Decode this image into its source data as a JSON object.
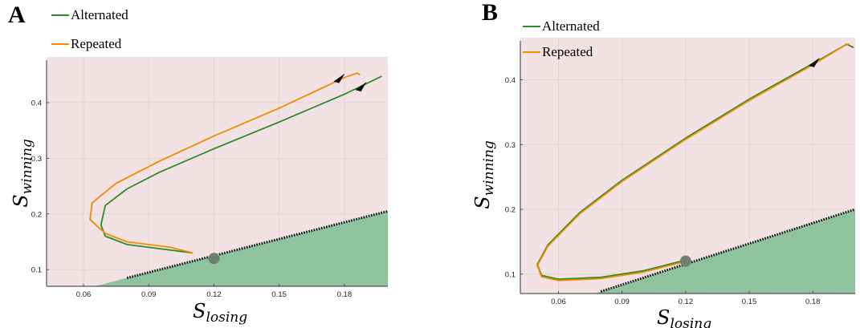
{
  "colors": {
    "background_region": "#f2e2e3",
    "stable_region": "#8fc39e",
    "alternated": "#2e8b2e",
    "repeated": "#f08c00",
    "fixed_point": "#6f7f75",
    "grid": "#d9cfd0"
  },
  "chart_data": [
    {
      "panel": "A",
      "type": "line",
      "xlabel_main": "S",
      "xlabel_sub": "losing",
      "ylabel_main": "S",
      "ylabel_sub": "winning",
      "xlim": [
        0.043,
        0.2
      ],
      "ylim": [
        0.07,
        0.482
      ],
      "xticks": [
        "0.06",
        "0.09",
        "0.12",
        "0.15",
        "0.18"
      ],
      "yticks": [
        "0.1",
        "0.2",
        "0.3",
        "0.4"
      ],
      "grid": true,
      "legend": [
        "Alternated",
        "Repeated"
      ],
      "fixed_point": [
        0.12,
        0.12
      ],
      "boundary": {
        "x": [
          0.065,
          0.2
        ],
        "y": [
          0.07,
          0.205
        ]
      },
      "series": [
        {
          "name": "Alternated",
          "x": [
            0.197,
            0.18,
            0.15,
            0.12,
            0.095,
            0.08,
            0.07,
            0.068,
            0.07,
            0.08,
            0.09,
            0.11
          ],
          "y": [
            0.447,
            0.415,
            0.365,
            0.317,
            0.275,
            0.245,
            0.215,
            0.18,
            0.16,
            0.145,
            0.14,
            0.13
          ]
        },
        {
          "name": "Repeated",
          "x": [
            0.187,
            0.186,
            0.18,
            0.15,
            0.12,
            0.095,
            0.075,
            0.064,
            0.063,
            0.07,
            0.08,
            0.1,
            0.11
          ],
          "y": [
            0.45,
            0.453,
            0.445,
            0.39,
            0.34,
            0.295,
            0.255,
            0.22,
            0.19,
            0.165,
            0.15,
            0.14,
            0.13
          ]
        }
      ],
      "arrows": [
        {
          "x": 0.178,
          "y": 0.445
        },
        {
          "x": 0.188,
          "y": 0.43
        }
      ]
    },
    {
      "panel": "B",
      "type": "line",
      "xlabel_main": "S",
      "xlabel_sub": "losing",
      "ylabel_main": "S",
      "ylabel_sub": "winning",
      "xlim": [
        0.042,
        0.2
      ],
      "ylim": [
        0.07,
        0.465
      ],
      "xticks": [
        "0.06",
        "0.09",
        "0.12",
        "0.15",
        "0.18"
      ],
      "yticks": [
        "0.1",
        "0.2",
        "0.3",
        "0.4"
      ],
      "grid": true,
      "legend": [
        "Alternated",
        "Repeated"
      ],
      "fixed_point": [
        0.12,
        0.12
      ],
      "boundary": {
        "x": [
          0.077,
          0.2
        ],
        "y": [
          0.07,
          0.2
        ]
      },
      "series": [
        {
          "name": "Alternated",
          "x": [
            0.199,
            0.196,
            0.18,
            0.15,
            0.12,
            0.09,
            0.07,
            0.055,
            0.05,
            0.052,
            0.06,
            0.08,
            0.1,
            0.118
          ],
          "y": [
            0.45,
            0.455,
            0.425,
            0.37,
            0.31,
            0.245,
            0.195,
            0.145,
            0.115,
            0.098,
            0.092,
            0.095,
            0.105,
            0.12
          ]
        },
        {
          "name": "Repeated",
          "x": [
            0.197,
            0.195,
            0.18,
            0.15,
            0.12,
            0.09,
            0.07,
            0.055,
            0.05,
            0.052,
            0.06,
            0.08,
            0.1,
            0.118
          ],
          "y": [
            0.455,
            0.453,
            0.423,
            0.368,
            0.308,
            0.243,
            0.193,
            0.143,
            0.113,
            0.096,
            0.09,
            0.093,
            0.103,
            0.118
          ]
        }
      ],
      "arrows": [
        {
          "x": 0.181,
          "y": 0.428
        }
      ]
    }
  ]
}
